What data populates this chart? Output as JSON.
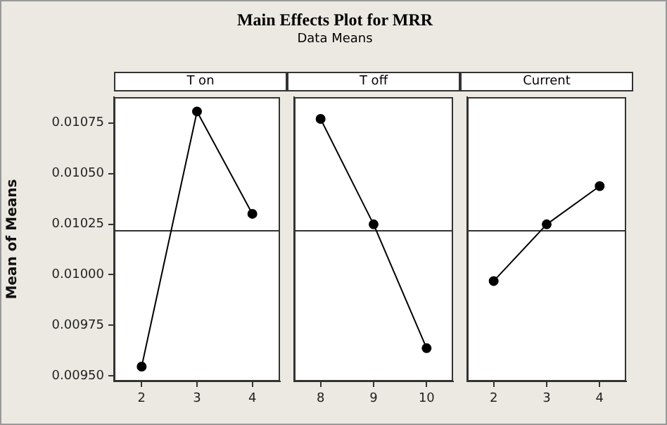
{
  "chart_data": [
    {
      "type": "other",
      "title": "Main Effects Plot for MRR",
      "subtitle": "Data Means"
    },
    {
      "type": "line",
      "title": "T on",
      "ylabel": "Mean of Means",
      "categories": [
        "2",
        "3",
        "4"
      ],
      "series": [
        {
          "color": "#000000",
          "values": [
            0.009546,
            0.010807,
            0.010301
          ]
        }
      ],
      "ylim": [
        0.009473,
        0.010878
      ],
      "yticks": [
        {
          "value": 0.0095,
          "label": "0.00950"
        },
        {
          "value": 0.00975,
          "label": "0.00975"
        },
        {
          "value": 0.01,
          "label": "0.01000"
        },
        {
          "value": 0.01025,
          "label": "0.01025"
        },
        {
          "value": 0.0105,
          "label": "0.01050"
        },
        {
          "value": 0.01075,
          "label": "0.01075"
        }
      ],
      "ref_lines": [
        {
          "axis": "y",
          "value": 0.010217
        }
      ],
      "marker": "circle",
      "line_style": "solid",
      "grid": false,
      "legend": false
    },
    {
      "type": "line",
      "title": "T off",
      "categories": [
        "8",
        "9",
        "10"
      ],
      "series": [
        {
          "color": "#000000",
          "values": [
            0.01077,
            0.010249,
            0.009637
          ]
        }
      ],
      "ylim": [
        0.009473,
        0.010878
      ],
      "tick_labels": "x",
      "ref_lines": [
        {
          "axis": "y",
          "value": 0.010217
        }
      ],
      "marker": "circle",
      "line_style": "solid",
      "grid": false,
      "legend": false
    },
    {
      "type": "line",
      "title": "Current",
      "categories": [
        "2",
        "3",
        "4"
      ],
      "series": [
        {
          "color": "#000000",
          "values": [
            0.009969,
            0.010249,
            0.010438
          ]
        }
      ],
      "ylim": [
        0.009473,
        0.010878
      ],
      "tick_labels": "x",
      "ref_lines": [
        {
          "axis": "y",
          "value": 0.010217
        }
      ],
      "marker": "circle",
      "line_style": "solid",
      "grid": false,
      "legend": false
    }
  ]
}
